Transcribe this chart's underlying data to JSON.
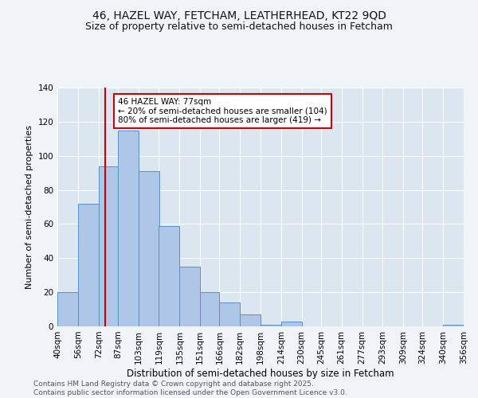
{
  "title1": "46, HAZEL WAY, FETCHAM, LEATHERHEAD, KT22 9QD",
  "title2": "Size of property relative to semi-detached houses in Fetcham",
  "xlabel": "Distribution of semi-detached houses by size in Fetcham",
  "ylabel": "Number of semi-detached properties",
  "bins": [
    40,
    56,
    72,
    87,
    103,
    119,
    135,
    151,
    166,
    182,
    198,
    214,
    230,
    245,
    261,
    277,
    293,
    309,
    324,
    340,
    356
  ],
  "bin_labels": [
    "40sqm",
    "56sqm",
    "72sqm",
    "87sqm",
    "103sqm",
    "119sqm",
    "135sqm",
    "151sqm",
    "166sqm",
    "182sqm",
    "198sqm",
    "214sqm",
    "230sqm",
    "245sqm",
    "261sqm",
    "277sqm",
    "293sqm",
    "309sqm",
    "324sqm",
    "340sqm",
    "356sqm"
  ],
  "counts": [
    20,
    72,
    94,
    115,
    91,
    59,
    35,
    20,
    14,
    7,
    1,
    3,
    0,
    0,
    0,
    0,
    0,
    0,
    0,
    1
  ],
  "bar_color": "#aec6e8",
  "bar_edge_color": "#5a8fc2",
  "vline_x": 77,
  "vline_color": "#cc0000",
  "annotation_text": "46 HAZEL WAY: 77sqm\n← 20% of semi-detached houses are smaller (104)\n80% of semi-detached houses are larger (419) →",
  "annotation_box_color": "#ffffff",
  "annotation_box_edge": "#cc0000",
  "ylim": [
    0,
    140
  ],
  "yticks": [
    0,
    20,
    40,
    60,
    80,
    100,
    120,
    140
  ],
  "fig_bg_color": "#f0f4f8",
  "plot_bg_color": "#dce6f0",
  "footer_text": "Contains HM Land Registry data © Crown copyright and database right 2025.\nContains public sector information licensed under the Open Government Licence v3.0.",
  "title1_fontsize": 10,
  "title2_fontsize": 9,
  "xlabel_fontsize": 8.5,
  "ylabel_fontsize": 8,
  "tick_fontsize": 7.5,
  "annot_fontsize": 7.5,
  "footer_fontsize": 6.5
}
